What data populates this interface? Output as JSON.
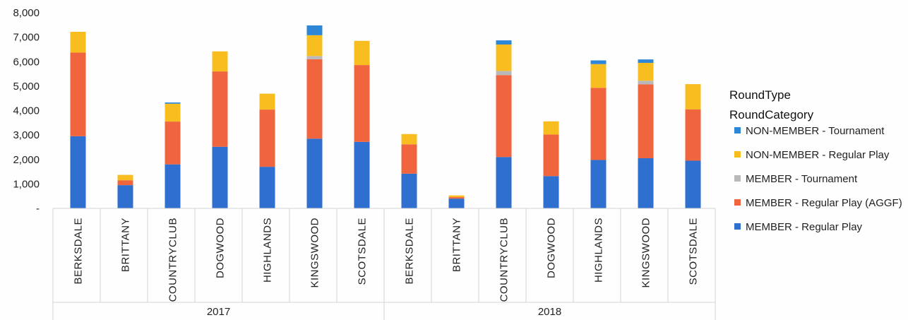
{
  "chart_data": {
    "type": "bar",
    "stacked": true,
    "groups": [
      {
        "label": "2017",
        "categories": [
          "BERKSDALE",
          "BRITTANY",
          "COUNTRYCLUB",
          "DOGWOOD",
          "HIGHLANDS",
          "KINGSWOOD",
          "SCOTSDALE"
        ]
      },
      {
        "label": "2018",
        "categories": [
          "BERKSDALE",
          "BRITTANY",
          "COUNTRYCLUB",
          "DOGWOOD",
          "HIGHLANDS",
          "KINGSWOOD",
          "SCOTSDALE"
        ]
      }
    ],
    "categories": [
      "BERKSDALE",
      "BRITTANY",
      "COUNTRYCLUB",
      "DOGWOOD",
      "HIGHLANDS",
      "KINGSWOOD",
      "SCOTSDALE",
      "BERKSDALE",
      "BRITTANY",
      "COUNTRYCLUB",
      "DOGWOOD",
      "HIGHLANDS",
      "KINGSWOOD",
      "SCOTSDALE"
    ],
    "series": [
      {
        "name": "MEMBER - Regular Play",
        "color": "#2e6fd0",
        "values": [
          2950,
          950,
          1800,
          2520,
          1700,
          2850,
          2720,
          1420,
          400,
          2100,
          1320,
          1980,
          2050,
          1950
        ]
      },
      {
        "name": "MEMBER - Regular Play (AGGF)",
        "color": "#f0643e",
        "values": [
          3420,
          200,
          1750,
          3080,
          2340,
          3250,
          3140,
          1200,
          60,
          3350,
          1700,
          2950,
          3020,
          2100
        ]
      },
      {
        "name": "MEMBER - Tournament",
        "color": "#b9b9b9",
        "values": [
          0,
          0,
          0,
          0,
          0,
          130,
          0,
          0,
          0,
          170,
          0,
          0,
          150,
          0
        ]
      },
      {
        "name": "NON-MEMBER - Regular Play",
        "color": "#f8bd1e",
        "values": [
          850,
          220,
          730,
          820,
          650,
          850,
          990,
          420,
          70,
          1080,
          540,
          970,
          730,
          1030
        ]
      },
      {
        "name": "NON-MEMBER - Tournament",
        "color": "#2d87d6",
        "values": [
          0,
          0,
          50,
          0,
          0,
          400,
          0,
          0,
          0,
          170,
          0,
          150,
          140,
          0
        ]
      }
    ],
    "ylim": [
      0,
      8000
    ],
    "yticks": [
      {
        "value": 0,
        "label": "-"
      },
      {
        "value": 1000,
        "label": "1,000"
      },
      {
        "value": 2000,
        "label": "2,000"
      },
      {
        "value": 3000,
        "label": "3,000"
      },
      {
        "value": 4000,
        "label": "4,000"
      },
      {
        "value": 5000,
        "label": "5,000"
      },
      {
        "value": 6000,
        "label": "6,000"
      },
      {
        "value": 7000,
        "label": "7,000"
      },
      {
        "value": 8000,
        "label": "8,000"
      }
    ],
    "grid": false,
    "legend": {
      "position": "right",
      "title_lines": [
        "RoundType",
        "RoundCategory"
      ],
      "order": [
        "NON-MEMBER - Tournament",
        "NON-MEMBER - Regular Play",
        "MEMBER - Tournament",
        "MEMBER - Regular Play (AGGF)",
        "MEMBER - Regular Play"
      ]
    }
  }
}
